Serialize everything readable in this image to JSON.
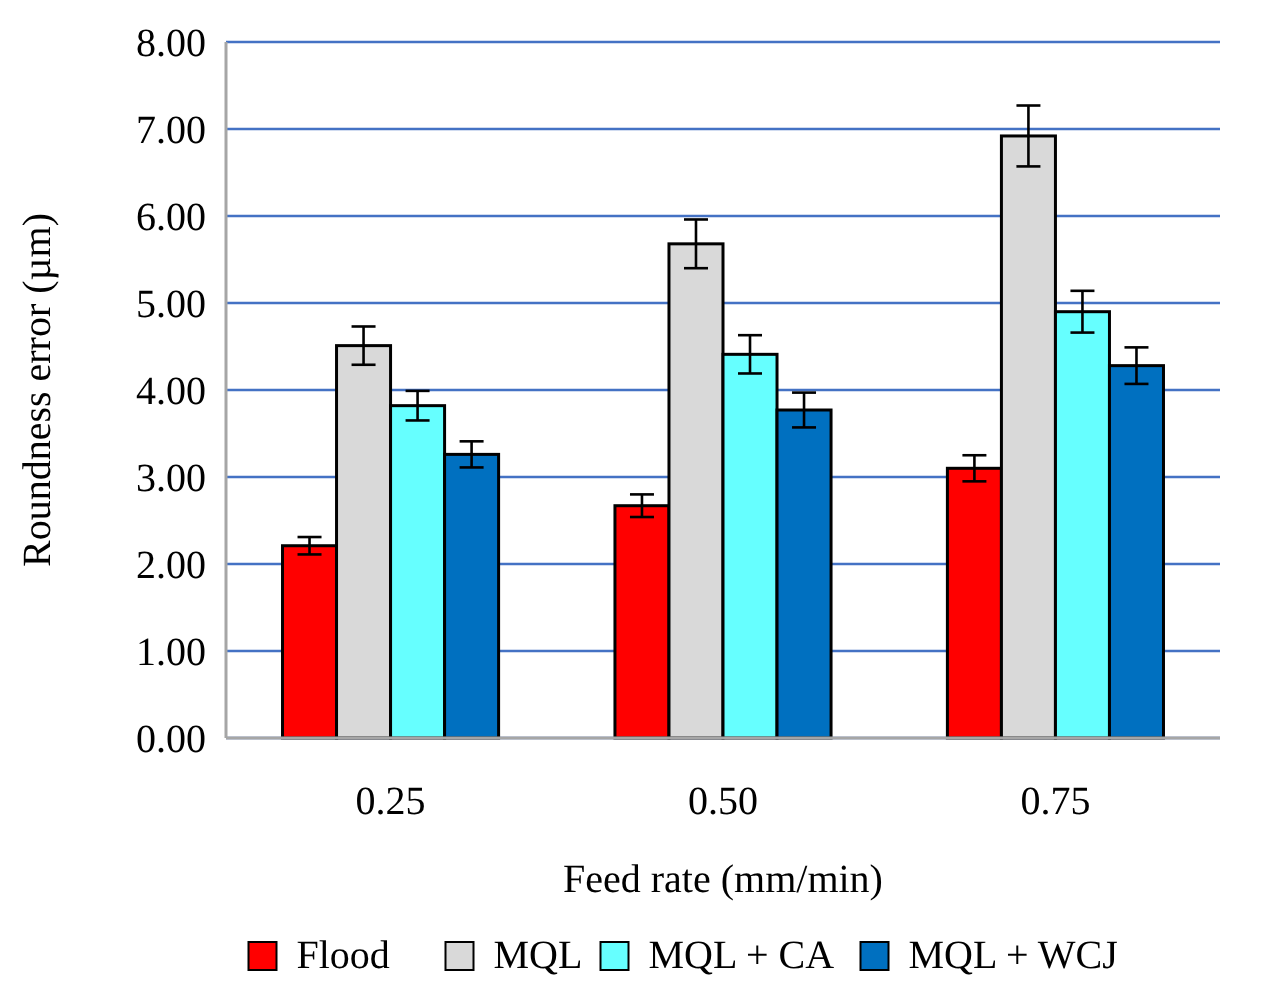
{
  "chart_data": {
    "type": "bar",
    "xlabel": "Feed rate (mm/min)",
    "ylabel": "Roundness error (µm)",
    "categories": [
      "0.25",
      "0.50",
      "0.75"
    ],
    "series": [
      {
        "name": "Flood",
        "color": "#ff0000",
        "values": [
          2.21,
          2.67,
          3.1
        ],
        "errors": [
          0.1,
          0.13,
          0.15
        ]
      },
      {
        "name": "MQL",
        "color": "#d9d9d9",
        "values": [
          4.51,
          5.68,
          6.92
        ],
        "errors": [
          0.22,
          0.28,
          0.35
        ]
      },
      {
        "name": "MQL + CA",
        "color": "#66ffff",
        "values": [
          3.82,
          4.41,
          4.9
        ],
        "errors": [
          0.17,
          0.22,
          0.24
        ]
      },
      {
        "name": "MQL + WCJ",
        "color": "#0070c0",
        "values": [
          3.26,
          3.77,
          4.28
        ],
        "errors": [
          0.15,
          0.2,
          0.21
        ]
      }
    ],
    "ylim": [
      0,
      8
    ],
    "yticks": [
      {
        "value": 0,
        "label": "0.00"
      },
      {
        "value": 1,
        "label": "1.00"
      },
      {
        "value": 2,
        "label": "2.00"
      },
      {
        "value": 3,
        "label": "3.00"
      },
      {
        "value": 4,
        "label": "4.00"
      },
      {
        "value": 5,
        "label": "5.00"
      },
      {
        "value": 6,
        "label": "6.00"
      },
      {
        "value": 7,
        "label": "7.00"
      },
      {
        "value": 8,
        "label": "8.00"
      }
    ],
    "grid": "y",
    "legend": "bottom"
  }
}
